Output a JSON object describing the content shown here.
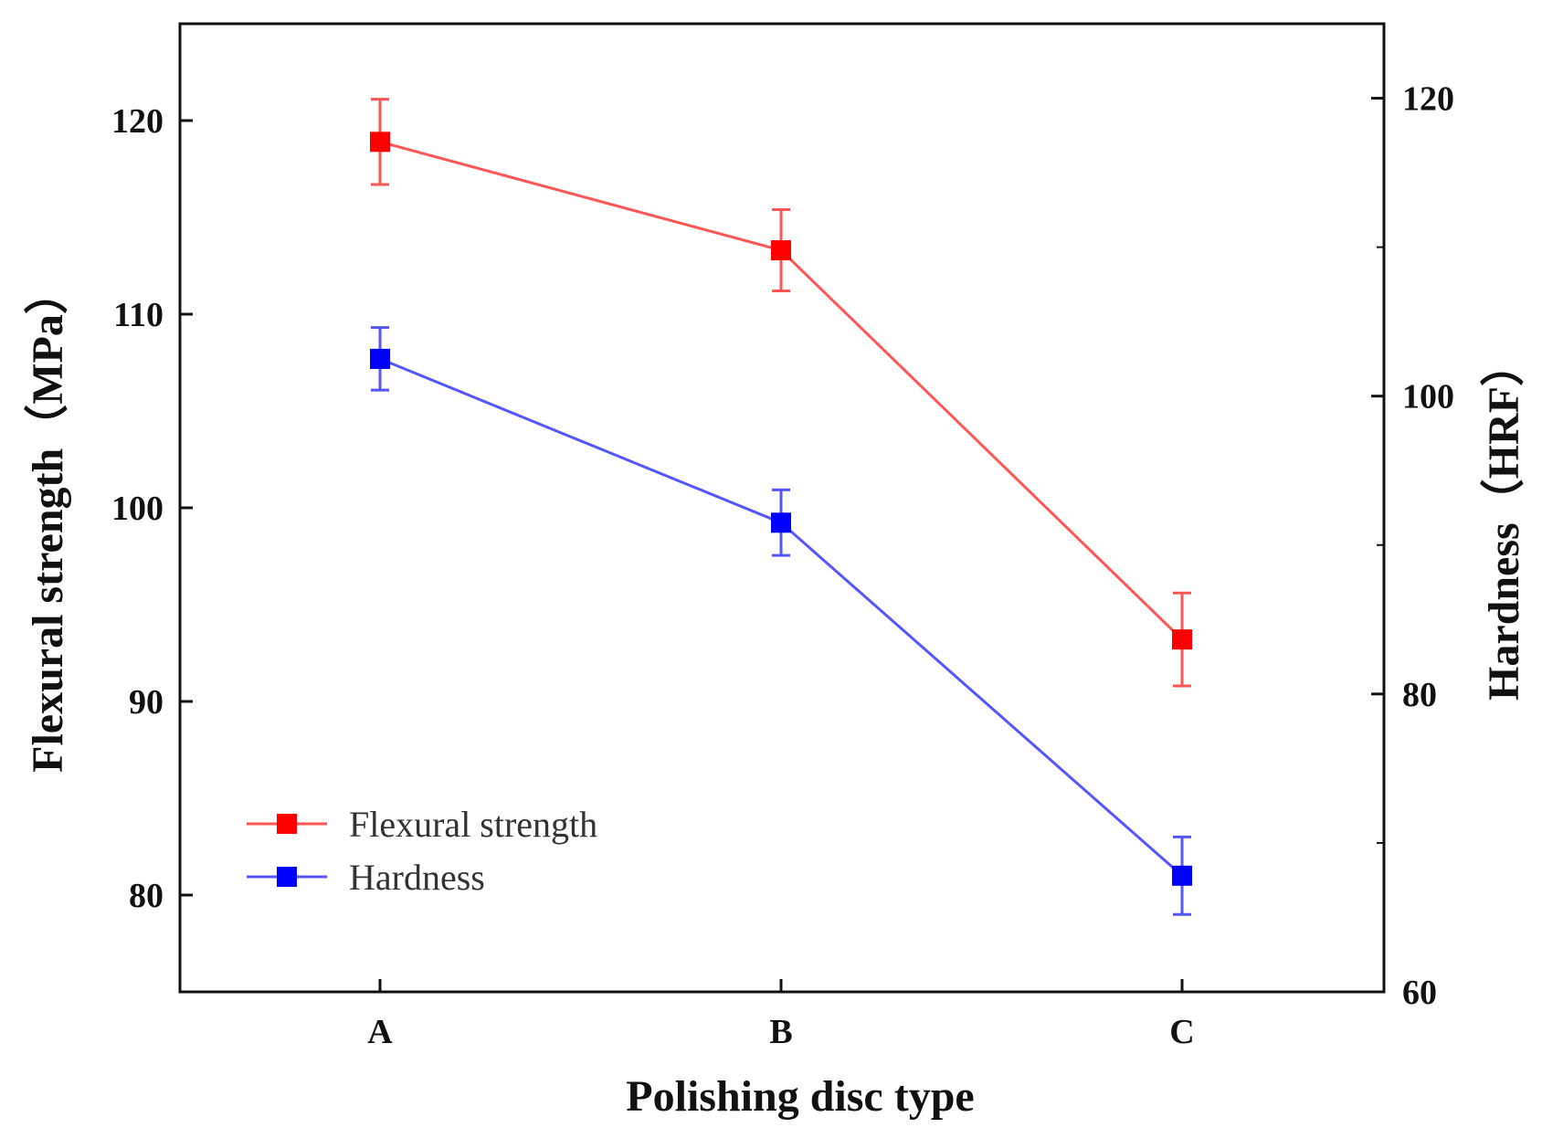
{
  "chart_data": {
    "type": "line",
    "title": "",
    "categories": [
      "A",
      "B",
      "C"
    ],
    "xlabel": "Polishing disc type",
    "ylabel": "Flexural strength（MPa）",
    "ylabel_right": "Hardness（HRF）",
    "ylim": [
      75,
      125
    ],
    "ylim_right": [
      60,
      125
    ],
    "yticks": [
      80,
      90,
      100,
      110,
      120
    ],
    "yticks_right": [
      60,
      80,
      100,
      120
    ],
    "grid": false,
    "legend_position": "bottom-left",
    "series": [
      {
        "name": "Flexural strength",
        "axis": "left",
        "color": "#ff0000",
        "line_color": "#ff5555",
        "values": [
          118.9,
          113.3,
          93.2
        ],
        "errors": [
          2.2,
          2.1,
          2.4
        ]
      },
      {
        "name": "Hardness",
        "axis": "right",
        "color": "#0000ff",
        "line_color": "#5555ff",
        "values": [
          102.5,
          91.5,
          67.8
        ],
        "errors": [
          2.1,
          2.2,
          2.6
        ]
      }
    ]
  }
}
